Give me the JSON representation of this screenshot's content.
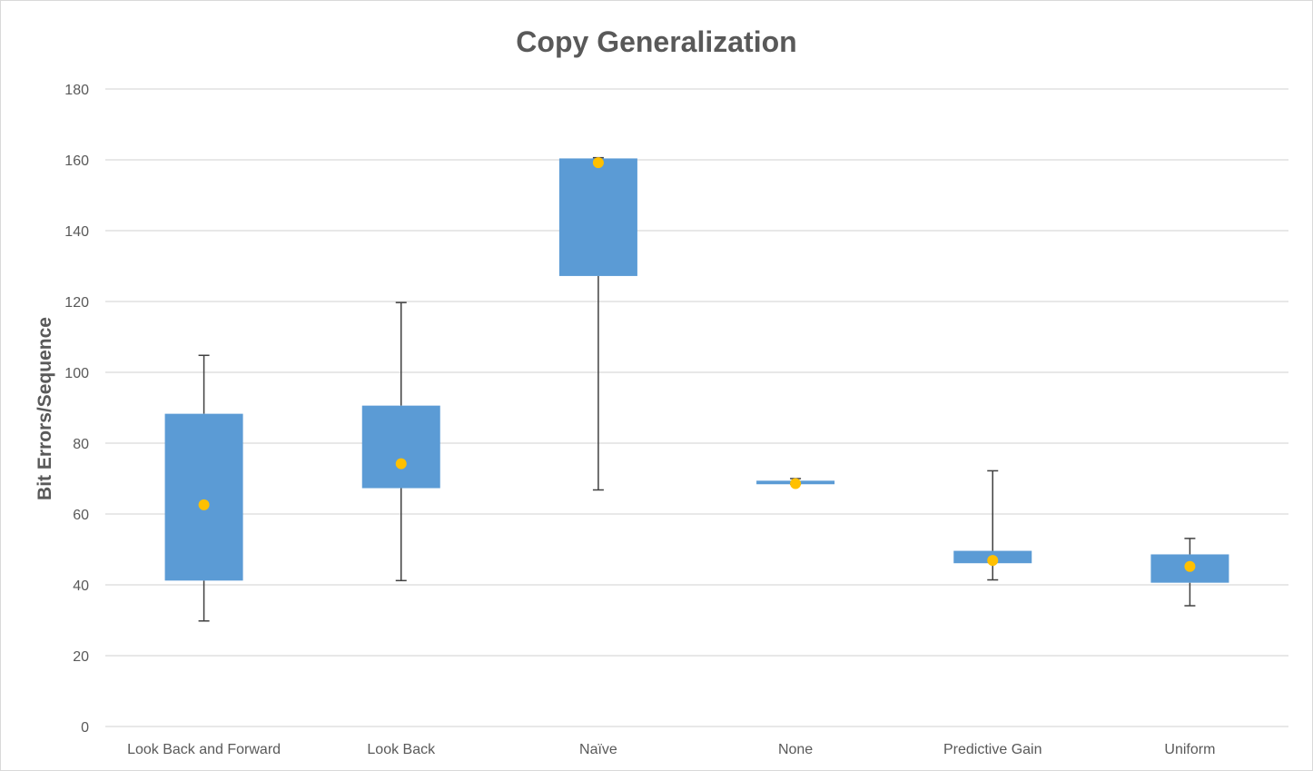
{
  "chart_data": {
    "type": "box",
    "title": "Copy Generalization",
    "xlabel": "",
    "ylabel": "Bit Errors/Sequence",
    "ylim": [
      0,
      180
    ],
    "yticks": [
      0,
      20,
      40,
      60,
      80,
      100,
      120,
      140,
      160,
      180
    ],
    "ytick_labels": [
      "0",
      "20",
      "40",
      "60",
      "80",
      "100",
      "120",
      "140",
      "160",
      "180"
    ],
    "grid": true,
    "legend": "none",
    "categories": [
      "Look Back and Forward",
      "Look Back",
      "Naïve",
      "None",
      "Predictive Gain",
      "Uniform"
    ],
    "boxes": [
      {
        "min": 29.8,
        "q1": 41.2,
        "q3": 88.3,
        "max": 104.8,
        "mean": 62.6
      },
      {
        "min": 41.2,
        "q1": 67.3,
        "q3": 90.6,
        "max": 119.7,
        "mean": 74.2
      },
      {
        "min": 66.8,
        "q1": 127.2,
        "q3": 160.4,
        "max": 160.6,
        "mean": 159.2
      },
      {
        "min": 68.4,
        "q1": 68.4,
        "q3": 69.4,
        "max": 70.0,
        "mean": 68.6
      },
      {
        "min": 41.4,
        "q1": 46.1,
        "q3": 49.6,
        "max": 72.2,
        "mean": 46.9
      },
      {
        "min": 34.1,
        "q1": 40.6,
        "q3": 48.6,
        "max": 53.1,
        "mean": 45.2
      }
    ],
    "colors": {
      "box": "#5b9bd5",
      "mean": "#ffc000",
      "whisker": "#404040",
      "grid": "#d9d9d9",
      "text": "#595959"
    }
  }
}
